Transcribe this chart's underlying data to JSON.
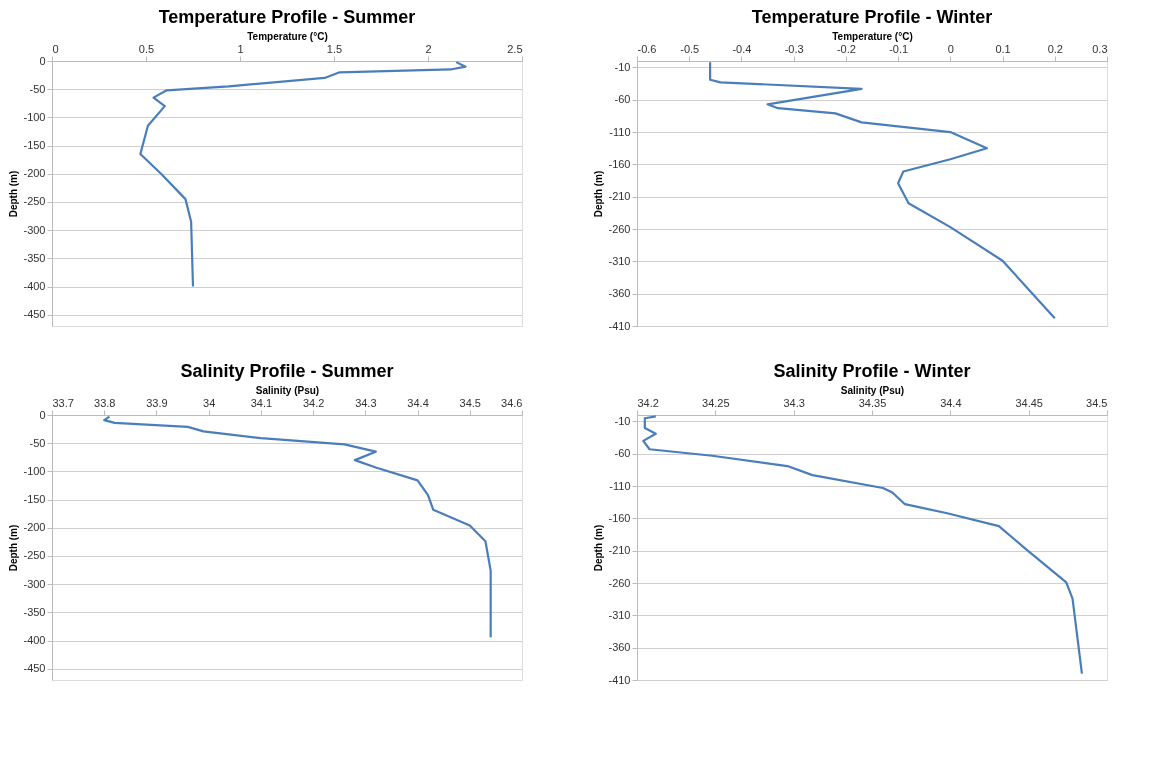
{
  "chart_data": [
    {
      "type": "line",
      "title": "Temperature Profile - Summer",
      "xlabel": "Temperature (°C)",
      "ylabel": "Depth (m)",
      "xlim": [
        0,
        2.5
      ],
      "xticks": [
        0,
        0.5,
        1,
        1.5,
        2,
        2.5
      ],
      "ylim": [
        -470,
        0
      ],
      "yticks": [
        0,
        -50,
        -100,
        -150,
        -200,
        -250,
        -300,
        -350,
        -400,
        -450
      ],
      "grid": "y",
      "series": [
        {
          "color": "#4a7ebb",
          "x": [
            2.15,
            2.2,
            2.12,
            1.53,
            1.45,
            0.94,
            0.61,
            0.54,
            0.6,
            0.51,
            0.49,
            0.47,
            0.58,
            0.71,
            0.74,
            0.75
          ],
          "values": [
            -2,
            -10,
            -15,
            -20,
            -30,
            -45,
            -52,
            -65,
            -80,
            -115,
            -140,
            -165,
            -200,
            -245,
            -285,
            -400
          ]
        }
      ]
    },
    {
      "type": "line",
      "title": "Temperature Profile - Winter",
      "xlabel": "Temperature (°C)",
      "ylabel": "Depth (m)",
      "xlim": [
        -0.6,
        0.3
      ],
      "xticks": [
        -0.6,
        -0.5,
        -0.4,
        -0.3,
        -0.2,
        -0.1,
        0,
        0.1,
        0.2,
        0.3
      ],
      "ylim": [
        -410,
        0
      ],
      "yticks": [
        -10,
        -60,
        -110,
        -160,
        -210,
        -260,
        -310,
        -360,
        -410
      ],
      "grid": "y",
      "series": [
        {
          "color": "#4a7ebb",
          "x": [
            -0.46,
            -0.46,
            -0.44,
            -0.17,
            -0.35,
            -0.33,
            -0.22,
            -0.17,
            0.0,
            0.07,
            0.0,
            -0.09,
            -0.1,
            -0.08,
            0.0,
            0.1,
            0.2
          ],
          "values": [
            -2,
            -29,
            -33,
            -43,
            -67,
            -73,
            -81,
            -95,
            -110,
            -135,
            -152,
            -171,
            -189,
            -220,
            -257,
            -309,
            -398
          ]
        }
      ]
    },
    {
      "type": "line",
      "title": "Salinity Profile - Summer",
      "xlabel": "Salinity (Psu)",
      "ylabel": "Depth (m)",
      "xlim": [
        33.7,
        34.6
      ],
      "xticks": [
        33.7,
        33.8,
        33.9,
        34,
        34.1,
        34.2,
        34.3,
        34.4,
        34.5,
        34.6
      ],
      "ylim": [
        -470,
        0
      ],
      "yticks": [
        0,
        -50,
        -100,
        -150,
        -200,
        -250,
        -300,
        -350,
        -400,
        -450
      ],
      "grid": "y",
      "series": [
        {
          "color": "#4a7ebb",
          "x": [
            33.81,
            33.8,
            33.82,
            33.96,
            33.99,
            34.1,
            34.26,
            34.32,
            34.28,
            34.32,
            34.4,
            34.42,
            34.43,
            34.5,
            34.53,
            34.54,
            34.54
          ],
          "values": [
            -3,
            -9,
            -14,
            -21,
            -29,
            -41,
            -52,
            -65,
            -80,
            -93,
            -116,
            -142,
            -168,
            -196,
            -224,
            -276,
            -394
          ]
        }
      ]
    },
    {
      "type": "line",
      "title": "Salinity Profile - Winter",
      "xlabel": "Salinity (Psu)",
      "ylabel": "Depth (m)",
      "xlim": [
        34.2,
        34.5
      ],
      "xticks": [
        34.2,
        34.25,
        34.3,
        34.35,
        34.4,
        34.45,
        34.5
      ],
      "ylim": [
        -410,
        0
      ],
      "yticks": [
        -10,
        -60,
        -110,
        -160,
        -210,
        -260,
        -310,
        -360,
        -410
      ],
      "grid": "y",
      "series": [
        {
          "color": "#4a7ebb",
          "x": [
            34.212,
            34.205,
            34.205,
            34.212,
            34.204,
            34.208,
            34.248,
            34.296,
            34.312,
            34.357,
            34.363,
            34.371,
            34.398,
            34.431,
            34.449,
            34.474,
            34.478,
            34.484
          ],
          "values": [
            -2,
            -5,
            -20,
            -29,
            -40,
            -53,
            -63,
            -79,
            -93,
            -113,
            -120,
            -138,
            -152,
            -172,
            -209,
            -259,
            -284,
            -400
          ]
        }
      ]
    }
  ]
}
